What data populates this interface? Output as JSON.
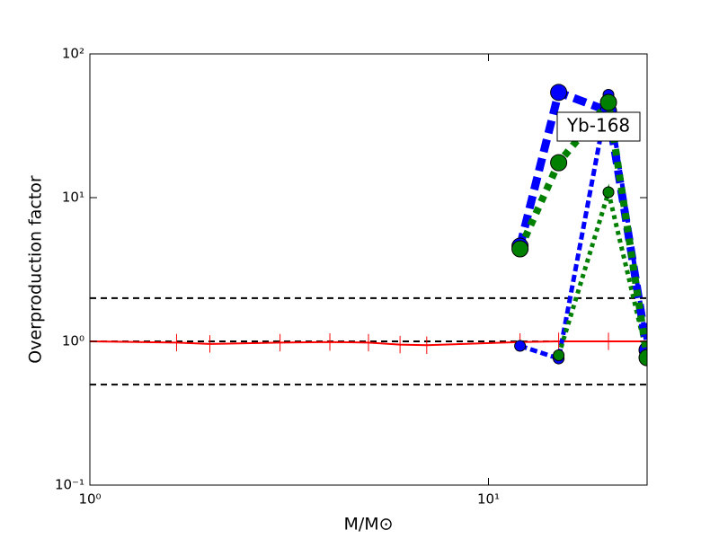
{
  "chart_data": {
    "type": "line",
    "xlabel": "M/M⊙",
    "ylabel": "Overproduction factor",
    "annotation": "Yb-168",
    "xlog": true,
    "ylog": true,
    "xlim": [
      1,
      25
    ],
    "ylim": [
      0.1,
      100
    ],
    "xticks": [
      {
        "value": 1,
        "label": "10⁰"
      },
      {
        "value": 10,
        "label": "10¹"
      }
    ],
    "yticks": [
      {
        "value": 0.1,
        "label": "10⁻¹"
      },
      {
        "value": 1,
        "label": "10⁰"
      },
      {
        "value": 10,
        "label": "10¹"
      },
      {
        "value": 100,
        "label": "10²"
      }
    ],
    "hlines": [
      0.5,
      1,
      2
    ],
    "hline_color": "#000000",
    "series": [
      {
        "x": [
          1,
          1.65,
          2,
          3,
          4,
          5,
          6,
          7,
          12,
          15,
          20,
          25
        ],
        "values": [
          1,
          0.98,
          0.96,
          0.98,
          0.99,
          0.98,
          0.95,
          0.94,
          0.99,
          1,
          1,
          1
        ],
        "errors": [
          null,
          0.15,
          0.15,
          0.15,
          0.15,
          0.15,
          0.15,
          0.15,
          0.15,
          0.15,
          0.15,
          null
        ],
        "color": "#ff0000",
        "style": "solid",
        "width": 2,
        "marker": 0
      },
      {
        "x": [
          12,
          15,
          20,
          25
        ],
        "values": [
          0.93,
          0.76,
          52,
          0.9
        ],
        "color": "#0000ff",
        "style": "dashed",
        "width": 5,
        "marker": 6
      },
      {
        "x": [
          15,
          20,
          25
        ],
        "values": [
          0.8,
          10.9,
          0.8
        ],
        "color": "#008000",
        "style": "dotted",
        "width": 5,
        "marker": 6
      },
      {
        "x": [
          12,
          15,
          20,
          25
        ],
        "values": [
          4.6,
          54,
          40,
          0.87
        ],
        "color": "#0000ff",
        "style": "dashed",
        "width": 9,
        "marker": 9
      },
      {
        "x": [
          12,
          15,
          20,
          25
        ],
        "values": [
          4.4,
          17.5,
          46,
          0.77
        ],
        "color": "#008000",
        "style": "dotted",
        "width": 8,
        "marker": 9
      }
    ]
  }
}
